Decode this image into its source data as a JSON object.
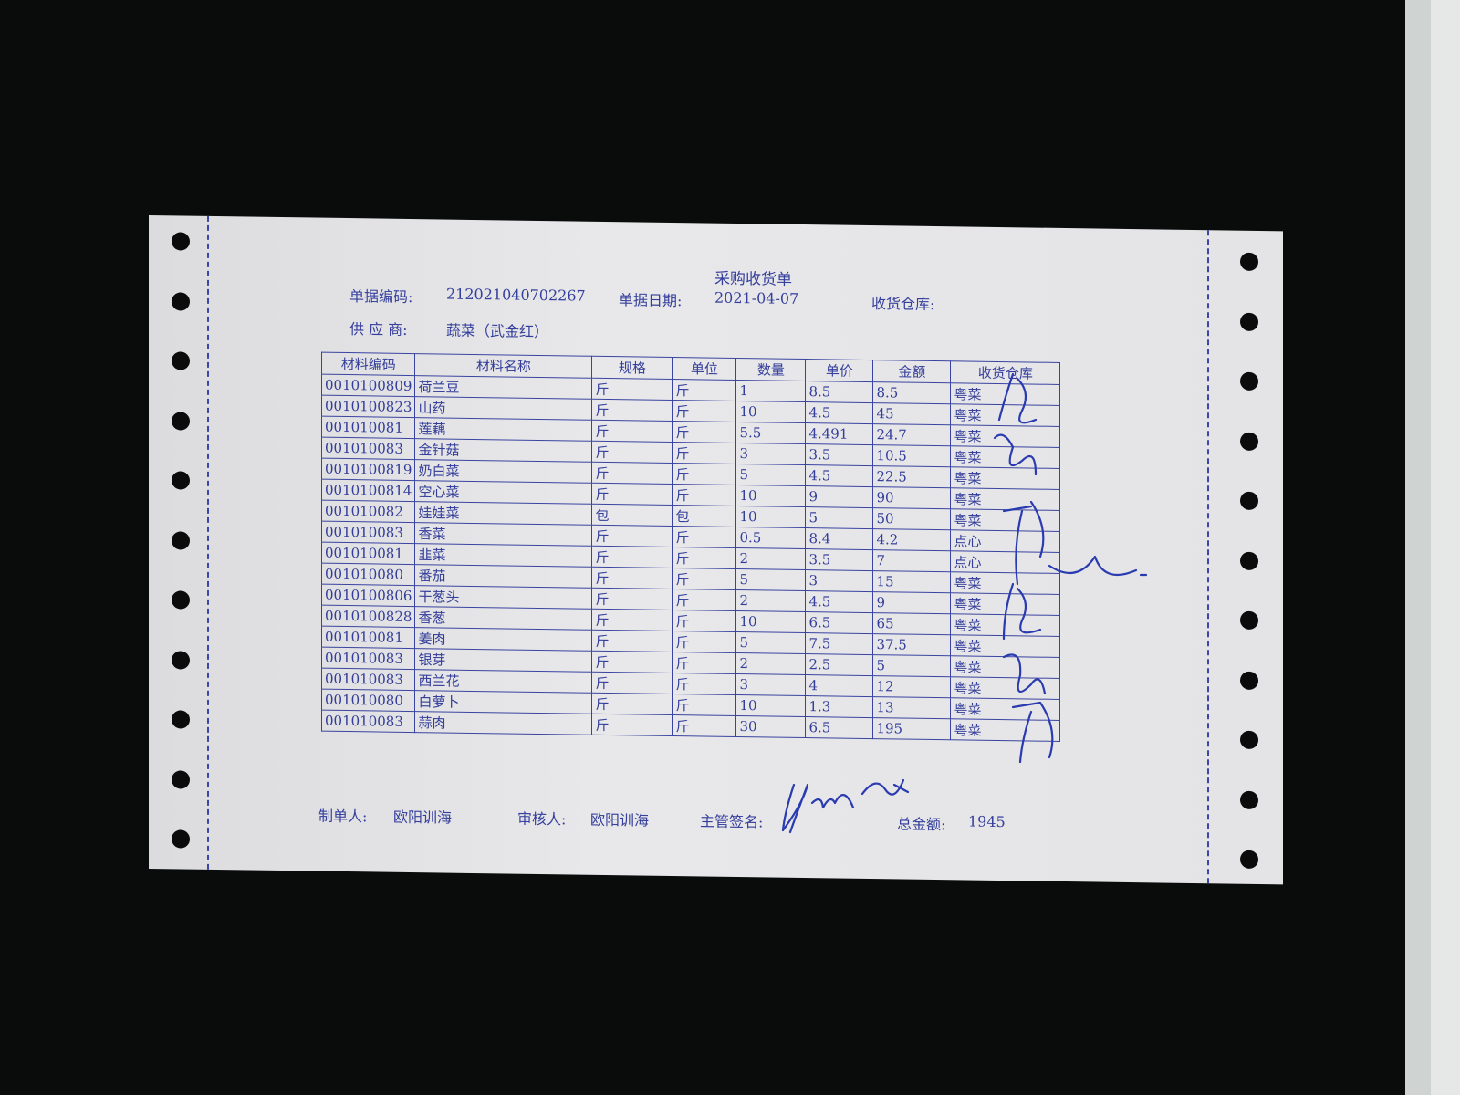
{
  "document": {
    "title": "采购收货单",
    "doc_no_label": "单据编码:",
    "doc_no": "212021040702267",
    "doc_date_label": "单据日期:",
    "doc_date": "2021-04-07",
    "warehouse_label": "收货仓库:",
    "supplier_label": "供 应 商:",
    "supplier": "蔬菜（武金红）"
  },
  "table": {
    "headers": [
      "材料编码",
      "材料名称",
      "规格",
      "单位",
      "数量",
      "单价",
      "金额",
      "收货仓库"
    ],
    "rows": [
      [
        "0010100809",
        "荷兰豆",
        "斤",
        "斤",
        "1",
        "8.5",
        "8.5",
        "粤菜"
      ],
      [
        "0010100823",
        "山药",
        "斤",
        "斤",
        "10",
        "4.5",
        "45",
        "粤菜"
      ],
      [
        "001010081",
        "莲藕",
        "斤",
        "斤",
        "5.5",
        "4.491",
        "24.7",
        "粤菜"
      ],
      [
        "001010083",
        "金针菇",
        "斤",
        "斤",
        "3",
        "3.5",
        "10.5",
        "粤菜"
      ],
      [
        "0010100819",
        "奶白菜",
        "斤",
        "斤",
        "5",
        "4.5",
        "22.5",
        "粤菜"
      ],
      [
        "0010100814",
        "空心菜",
        "斤",
        "斤",
        "10",
        "9",
        "90",
        "粤菜"
      ],
      [
        "001010082",
        "娃娃菜",
        "包",
        "包",
        "10",
        "5",
        "50",
        "粤菜"
      ],
      [
        "001010083",
        "香菜",
        "斤",
        "斤",
        "0.5",
        "8.4",
        "4.2",
        "点心"
      ],
      [
        "001010081",
        "韭菜",
        "斤",
        "斤",
        "2",
        "3.5",
        "7",
        "点心"
      ],
      [
        "001010080",
        "番茄",
        "斤",
        "斤",
        "5",
        "3",
        "15",
        "粤菜"
      ],
      [
        "0010100806",
        "干葱头",
        "斤",
        "斤",
        "2",
        "4.5",
        "9",
        "粤菜"
      ],
      [
        "0010100828",
        "香葱",
        "斤",
        "斤",
        "10",
        "6.5",
        "65",
        "粤菜"
      ],
      [
        "001010081",
        "姜肉",
        "斤",
        "斤",
        "5",
        "7.5",
        "37.5",
        "粤菜"
      ],
      [
        "001010083",
        "银芽",
        "斤",
        "斤",
        "2",
        "2.5",
        "5",
        "粤菜"
      ],
      [
        "001010083",
        "西兰花",
        "斤",
        "斤",
        "3",
        "4",
        "12",
        "粤菜"
      ],
      [
        "001010080",
        "白萝卜",
        "斤",
        "斤",
        "10",
        "1.3",
        "13",
        "粤菜"
      ],
      [
        "001010083",
        "蒜肉",
        "斤",
        "斤",
        "30",
        "6.5",
        "195",
        "粤菜"
      ]
    ]
  },
  "footer": {
    "maker_label": "制单人:",
    "maker": "欧阳训海",
    "reviewer_label": "审核人:",
    "reviewer": "欧阳训海",
    "supervisor_label": "主管签名:",
    "total_label": "总金额:",
    "total": "1945"
  },
  "colors": {
    "ink": "#353f9c",
    "pen": "#2a3bb0",
    "background": "#0a0c0c"
  }
}
